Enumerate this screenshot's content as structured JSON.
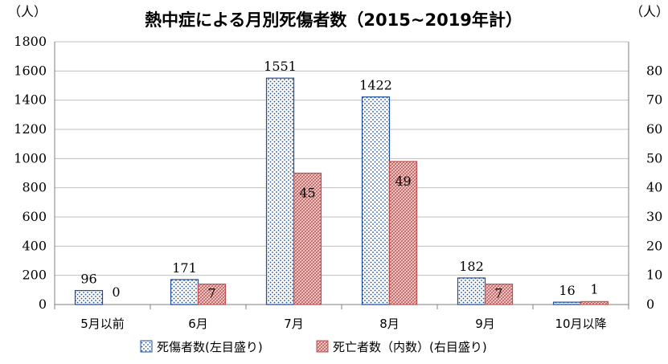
{
  "chart_data": {
    "type": "bar",
    "title": "熱中症による月別死傷者数（2015~2019年計）",
    "y_left_unit": "（人）",
    "y_right_unit": "（人）",
    "categories": [
      "5月以前",
      "6月",
      "7月",
      "8月",
      "9月",
      "10月以降"
    ],
    "series": [
      {
        "name": "死傷者数(左目盛り)",
        "axis": "left",
        "values": [
          96,
          171,
          1551,
          1422,
          182,
          16
        ],
        "labels": [
          "96",
          "171",
          "1551",
          "1422",
          "182",
          "16"
        ],
        "color": "#1f4e9c",
        "pattern": "dots"
      },
      {
        "name": "死亡者数（内数）(右目盛り)",
        "axis": "right",
        "values": [
          0,
          7,
          45,
          49,
          7,
          1
        ],
        "labels": [
          "0",
          "7",
          "45",
          "49",
          "7",
          "1"
        ],
        "color": "#c0504d",
        "pattern": "hatch"
      }
    ],
    "y_left": {
      "min": 0,
      "max": 1800,
      "ticks": [
        "0",
        "200",
        "400",
        "600",
        "800",
        "1000",
        "1200",
        "1400",
        "1600",
        "1800"
      ]
    },
    "y_right": {
      "min": 0,
      "max": 90,
      "ticks": [
        "0",
        "10",
        "20",
        "30",
        "40",
        "50",
        "60",
        "70",
        "80"
      ]
    },
    "grid": true,
    "legend_position": "bottom"
  }
}
